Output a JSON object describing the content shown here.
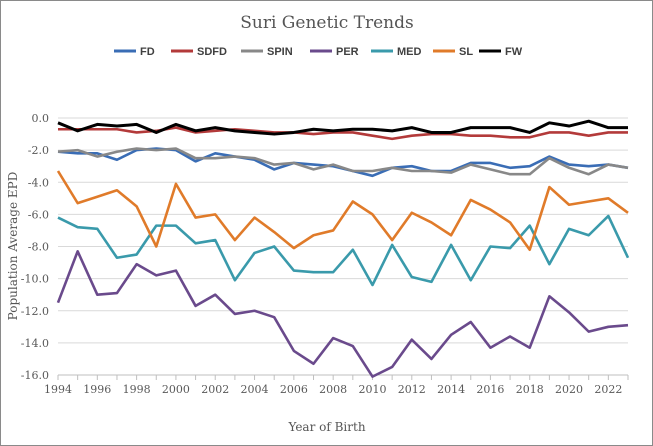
{
  "chart_data": {
    "type": "line",
    "title": "Suri Genetic Trends",
    "xlabel": "Year of Birth",
    "ylabel": "Population Average EPD",
    "x": [
      1994,
      1995,
      1996,
      1997,
      1998,
      1999,
      2000,
      2001,
      2002,
      2003,
      2004,
      2005,
      2006,
      2007,
      2008,
      2009,
      2010,
      2011,
      2012,
      2013,
      2014,
      2015,
      2016,
      2017,
      2018,
      2019,
      2020,
      2021,
      2022,
      2023
    ],
    "xlim": [
      1994,
      2023
    ],
    "ylim": [
      -16,
      0
    ],
    "x_ticks": [
      "1994",
      "1996",
      "1998",
      "2000",
      "2002",
      "2004",
      "2006",
      "2008",
      "2010",
      "2012",
      "2014",
      "2016",
      "2018",
      "2020",
      "2022"
    ],
    "y_ticks": [
      "0.0",
      "-2.0",
      "-4.0",
      "-6.0",
      "-8.0",
      "-10.0",
      "-12.0",
      "-14.0",
      "-16.0"
    ],
    "grid": "horizontal",
    "legend_position": "top",
    "series": [
      {
        "name": "FD",
        "color": "#3a6db5",
        "values": [
          -2.1,
          -2.2,
          -2.2,
          -2.6,
          -2.0,
          -1.9,
          -2.0,
          -2.7,
          -2.2,
          -2.4,
          -2.6,
          -3.2,
          -2.8,
          -2.9,
          -3.0,
          -3.3,
          -3.6,
          -3.1,
          -3.0,
          -3.3,
          -3.3,
          -2.8,
          -2.8,
          -3.1,
          -3.0,
          -2.4,
          -2.9,
          -3.0,
          -2.9,
          -3.1
        ]
      },
      {
        "name": "SDFD",
        "color": "#b33a3a",
        "values": [
          -0.7,
          -0.7,
          -0.7,
          -0.7,
          -0.9,
          -0.8,
          -0.6,
          -0.9,
          -0.8,
          -0.7,
          -0.8,
          -0.9,
          -0.9,
          -1.0,
          -0.9,
          -0.9,
          -1.1,
          -1.3,
          -1.1,
          -1.0,
          -1.0,
          -1.1,
          -1.1,
          -1.2,
          -1.2,
          -0.9,
          -0.9,
          -1.1,
          -0.9,
          -0.9
        ]
      },
      {
        "name": "SPIN",
        "color": "#888888",
        "values": [
          -2.1,
          -2.0,
          -2.4,
          -2.1,
          -1.9,
          -2.0,
          -1.9,
          -2.5,
          -2.5,
          -2.4,
          -2.5,
          -2.9,
          -2.8,
          -3.2,
          -2.9,
          -3.3,
          -3.3,
          -3.1,
          -3.3,
          -3.3,
          -3.4,
          -2.9,
          -3.2,
          -3.5,
          -3.5,
          -2.5,
          -3.1,
          -3.5,
          -2.9,
          -3.1
        ]
      },
      {
        "name": "PER",
        "color": "#6a4a8c",
        "values": [
          -11.5,
          -8.3,
          -11.0,
          -10.9,
          -9.1,
          -9.8,
          -9.5,
          -11.7,
          -11.0,
          -12.2,
          -12.0,
          -12.4,
          -14.5,
          -15.3,
          -13.7,
          -14.2,
          -16.1,
          -15.5,
          -13.8,
          -15.0,
          -13.5,
          -12.7,
          -14.3,
          -13.6,
          -14.3,
          -11.1,
          -12.1,
          -13.3,
          -13.0,
          -12.9
        ]
      },
      {
        "name": "MED",
        "color": "#3a9aab",
        "values": [
          -6.2,
          -6.8,
          -6.9,
          -8.7,
          -8.5,
          -6.7,
          -6.7,
          -7.8,
          -7.6,
          -10.1,
          -8.4,
          -8.0,
          -9.5,
          -9.6,
          -9.6,
          -8.2,
          -10.4,
          -7.9,
          -9.9,
          -10.2,
          -7.9,
          -10.1,
          -8.0,
          -8.1,
          -6.7,
          -9.1,
          -6.9,
          -7.3,
          -6.1,
          -8.7
        ]
      },
      {
        "name": "SL",
        "color": "#e07b2a",
        "values": [
          -3.3,
          -5.3,
          -4.9,
          -4.5,
          -5.5,
          -8.0,
          -4.1,
          -6.2,
          -6.0,
          -7.6,
          -6.2,
          -7.1,
          -8.1,
          -7.3,
          -7.0,
          -5.2,
          -6.0,
          -7.6,
          -5.9,
          -6.5,
          -7.3,
          -5.1,
          -5.7,
          -6.5,
          -8.2,
          -4.3,
          -5.4,
          -5.2,
          -5.0,
          -5.9
        ]
      },
      {
        "name": "FW",
        "color": "#000000",
        "values": [
          -0.3,
          -0.8,
          -0.4,
          -0.5,
          -0.4,
          -0.9,
          -0.4,
          -0.8,
          -0.6,
          -0.8,
          -0.9,
          -1.0,
          -0.9,
          -0.7,
          -0.8,
          -0.7,
          -0.7,
          -0.8,
          -0.6,
          -0.9,
          -0.9,
          -0.6,
          -0.6,
          -0.6,
          -0.9,
          -0.3,
          -0.5,
          -0.2,
          -0.6,
          -0.6
        ]
      }
    ]
  }
}
